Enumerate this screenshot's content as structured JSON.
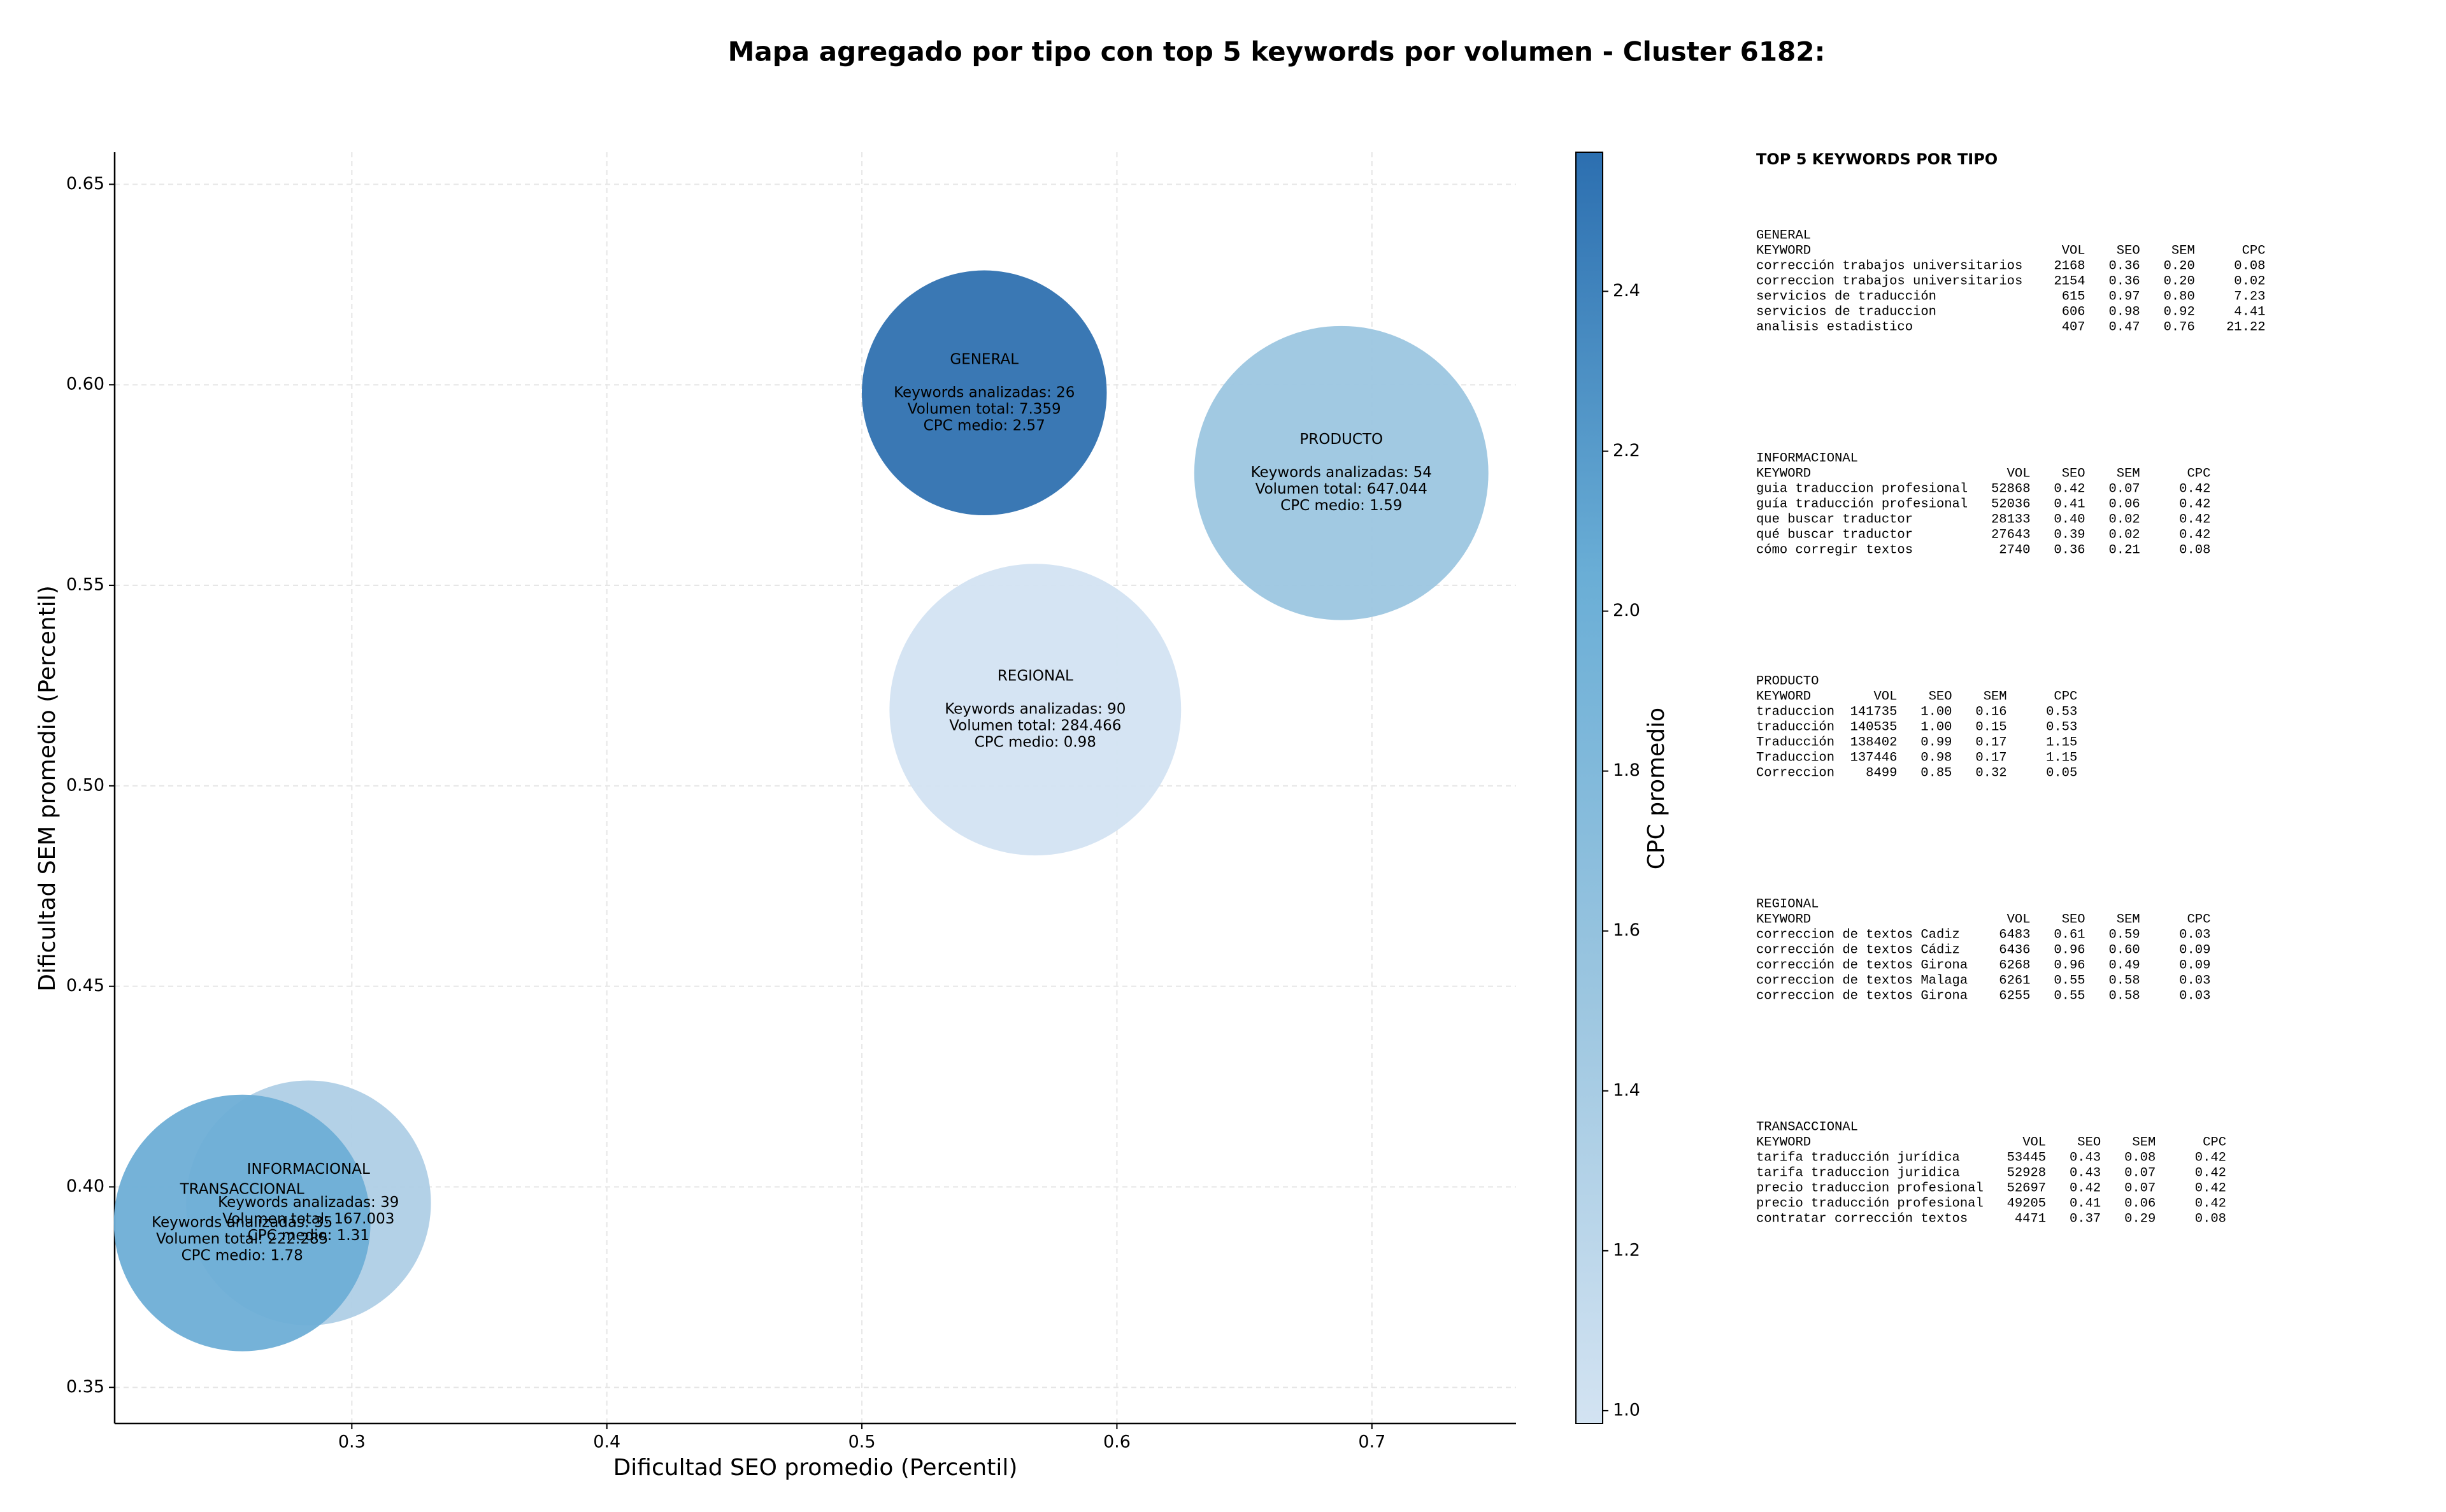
{
  "chart_data": {
    "type": "scatter",
    "title": "Mapa agregado por tipo con top 5 keywords por volumen - Cluster 6182:",
    "xlabel": "Dificultad SEO promedio (Percentil)",
    "ylabel": "Dificultad SEM promedio (Percentil)",
    "xlim": [
      0.207,
      0.7565
    ],
    "ylim": [
      0.341,
      0.658
    ],
    "xticks": [
      0.3,
      {
        "value": 0.4,
        "label": "0.4"
      },
      0.5,
      0.6,
      0.7
    ],
    "yticks": [
      0.35,
      {
        "value": 0.4,
        "label": "0.40"
      },
      0.45,
      {
        "value": 0.5,
        "label": "0.50"
      },
      0.55,
      {
        "value": 0.6,
        "label": "0.60"
      },
      0.65
    ],
    "grid": true,
    "series": [
      {
        "name": "GENERAL",
        "color": "#2f71b0",
        "x": [
          0.548
        ],
        "values": [
          0.598
        ],
        "sizes": [
          6100
        ],
        "c_values": [
          2.57
        ],
        "labels": [
          "Keywords analizadas: 26",
          "Volumen total: 7.359",
          "CPC medio: 2.57"
        ]
      },
      {
        "name": "INFORMACIONAL",
        "color": "#afcfe6",
        "x": [
          0.283
        ],
        "values": [
          0.396
        ],
        "sizes": [
          6100
        ],
        "c_values": [
          1.31
        ],
        "labels": [
          "Keywords analizadas: 39",
          "Volumen total: 167.003",
          "CPC medio: 1.31"
        ]
      },
      {
        "name": "PRODUCTO",
        "color": "#9cc6e0",
        "x": [
          0.688
        ],
        "values": [
          0.578
        ],
        "sizes": [
          8800
        ],
        "c_values": [
          1.59
        ],
        "labels": [
          "Keywords analizadas: 54",
          "Volumen total: 647.044",
          "CPC medio: 1.59"
        ]
      },
      {
        "name": "REGIONAL",
        "color": "#d3e3f2",
        "x": [
          0.568
        ],
        "values": [
          0.519
        ],
        "sizes": [
          8650
        ],
        "c_values": [
          0.98
        ],
        "labels": [
          "Keywords analizadas: 90",
          "Volumen total: 284.466",
          "CPC medio: 0.98"
        ]
      },
      {
        "name": "TRANSACCIONAL",
        "color": "#6eaed6",
        "x": [
          0.257
        ],
        "values": [
          0.391
        ],
        "sizes": [
          6700
        ],
        "c_values": [
          1.78
        ],
        "labels": [
          "Keywords analizadas: 35",
          "Volumen total: 222.285",
          "CPC medio: 1.78"
        ]
      }
    ],
    "colorbar": {
      "label": "CPC promedio",
      "clim": [
        0.984,
        2.574
      ],
      "ticks": [
        {
          "value": 1,
          "label": "1.0"
        },
        1.2,
        1.4,
        1.6,
        1.8,
        {
          "value": 2,
          "label": "2.0"
        },
        2.2,
        2.4
      ],
      "colormap": [
        "#d3e3f2",
        "#9cc6e0",
        "#6aaed6",
        "#2c6fb0"
      ]
    }
  },
  "panel": {
    "title": "TOP 5 KEYWORDS POR TIPO",
    "columns": [
      "KEYWORD",
      "VOL",
      "SEO",
      "SEM",
      "CPC"
    ],
    "sections": [
      {
        "name": "GENERAL",
        "rows": [
          [
            "corrección trabajos universitarios",
            "2168",
            "0.36",
            "0.20",
            "0.08"
          ],
          [
            "correccion trabajos universitarios",
            "2154",
            "0.36",
            "0.20",
            "0.02"
          ],
          [
            "servicios de traducción",
            "615",
            "0.97",
            "0.80",
            "7.23"
          ],
          [
            "servicios de traduccion",
            "606",
            "0.98",
            "0.92",
            "4.41"
          ],
          [
            "analisis estadistico",
            "407",
            "0.47",
            "0.76",
            "21.22"
          ]
        ]
      },
      {
        "name": "INFORMACIONAL",
        "rows": [
          [
            "guia traduccion profesional",
            "52868",
            "0.42",
            "0.07",
            "0.42"
          ],
          [
            "guía traducción profesional",
            "52036",
            "0.41",
            "0.06",
            "0.42"
          ],
          [
            "que buscar traductor",
            "28133",
            "0.40",
            "0.02",
            "0.42"
          ],
          [
            "qué buscar traductor",
            "27643",
            "0.39",
            "0.02",
            "0.42"
          ],
          [
            "cómo corregir textos",
            "2740",
            "0.36",
            "0.21",
            "0.08"
          ]
        ]
      },
      {
        "name": "PRODUCTO",
        "rows": [
          [
            "traduccion",
            "141735",
            "1.00",
            "0.16",
            "0.53"
          ],
          [
            "traducción",
            "140535",
            "1.00",
            "0.15",
            "0.53"
          ],
          [
            "Traducción",
            "138402",
            "0.99",
            "0.17",
            "1.15"
          ],
          [
            "Traduccion",
            "137446",
            "0.98",
            "0.17",
            "1.15"
          ],
          [
            "Correccion",
            "8499",
            "0.85",
            "0.32",
            "0.05"
          ]
        ]
      },
      {
        "name": "REGIONAL",
        "rows": [
          [
            "correccion de textos Cadiz",
            "6483",
            "0.61",
            "0.59",
            "0.03"
          ],
          [
            "corrección de textos Cádiz",
            "6436",
            "0.96",
            "0.60",
            "0.09"
          ],
          [
            "corrección de textos Girona",
            "6268",
            "0.96",
            "0.49",
            "0.09"
          ],
          [
            "correccion de textos Malaga",
            "6261",
            "0.55",
            "0.58",
            "0.03"
          ],
          [
            "correccion de textos Girona",
            "6255",
            "0.55",
            "0.58",
            "0.03"
          ]
        ]
      },
      {
        "name": "TRANSACCIONAL",
        "rows": [
          [
            "tarifa traducción jurídica",
            "53445",
            "0.43",
            "0.08",
            "0.42"
          ],
          [
            "tarifa traduccion juridica",
            "52928",
            "0.43",
            "0.07",
            "0.42"
          ],
          [
            "precio traduccion profesional",
            "52697",
            "0.42",
            "0.07",
            "0.42"
          ],
          [
            "precio traducción profesional",
            "49205",
            "0.41",
            "0.06",
            "0.42"
          ],
          [
            "contratar corrección textos",
            "4471",
            "0.37",
            "0.29",
            "0.08"
          ]
        ]
      }
    ]
  }
}
